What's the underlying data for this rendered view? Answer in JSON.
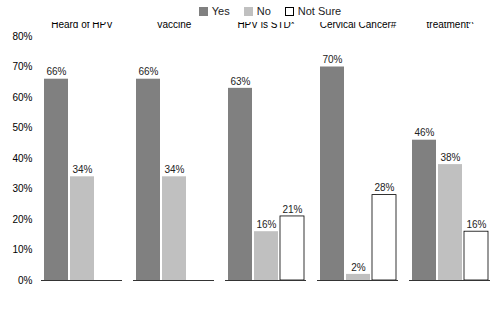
{
  "chart_data": {
    "type": "bar",
    "categories": [
      "Heard of HPV",
      "Heard of HPV Vaccine",
      "HPV is STD*",
      "HPV causes Cervical Cancer#",
      "HPVgoes away without treatment^"
    ],
    "series": [
      {
        "name": "Yes",
        "color": "#808080",
        "values": [
          66,
          66,
          63,
          70,
          46
        ],
        "value_labels": [
          "66%",
          "66%",
          "63%",
          "70%",
          "46%"
        ]
      },
      {
        "name": "No",
        "color": "#c0c0c0",
        "values": [
          34,
          34,
          16,
          2,
          38
        ],
        "value_labels": [
          "34%",
          "34%",
          "16%",
          "2%",
          "38%"
        ]
      },
      {
        "name": "Not Sure",
        "color": "#ffffff",
        "values": [
          null,
          null,
          21,
          28,
          16
        ],
        "value_labels": [
          null,
          null,
          "21%",
          "28%",
          "16%"
        ]
      }
    ],
    "ylim": [
      0,
      80
    ],
    "yticks": [
      {
        "value": 0,
        "label": "0%"
      },
      {
        "value": 10,
        "label": "10%"
      },
      {
        "value": 20,
        "label": "20%"
      },
      {
        "value": 30,
        "label": "30%"
      },
      {
        "value": 40,
        "label": "40%"
      },
      {
        "value": 50,
        "label": "50%"
      },
      {
        "value": 60,
        "label": "60%"
      },
      {
        "value": 70,
        "label": "70%"
      },
      {
        "value": 80,
        "label": "80%"
      }
    ],
    "legend": "top",
    "data_labels": true,
    "grid": false
  }
}
